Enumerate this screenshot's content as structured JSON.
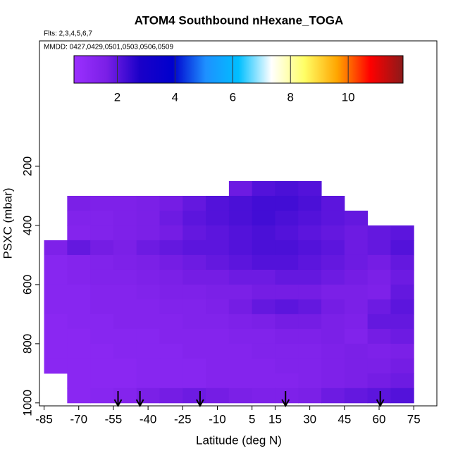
{
  "chart_data": {
    "type": "heatmap",
    "title": "ATOM4 Southbound nHexane_TOGA",
    "subtitle": "Flts: 2,3,4,5,6,7",
    "annotation": "MMDD: 0427,0429,0501,0503,0506,0509",
    "x_label": "Latitude (deg N)",
    "y_label": "PSXC (mbar)",
    "xlim": [
      -87,
      85
    ],
    "ylim": [
      1010,
      -224
    ],
    "xticks": [
      -85,
      -70,
      -55,
      -40,
      -25,
      -10,
      5,
      15,
      30,
      45,
      60,
      75
    ],
    "yticks": [
      200,
      400,
      600,
      800,
      1000
    ],
    "x_edges": [
      -85,
      -75,
      -65,
      -55,
      -45,
      -35,
      -25,
      -15,
      -5,
      5,
      15,
      25,
      35,
      45,
      55,
      65,
      75
    ],
    "y_edges": [
      250,
      300,
      350,
      400,
      450,
      500,
      550,
      600,
      650,
      700,
      750,
      800,
      850,
      900,
      950,
      1000
    ],
    "values": [
      [
        null,
        null,
        null,
        null,
        null,
        null,
        null,
        null,
        1.8,
        2.1,
        2.2,
        2.1,
        null,
        null,
        null,
        null
      ],
      [
        null,
        1.6,
        1.5,
        1.5,
        1.6,
        1.7,
        1.9,
        2.1,
        2.2,
        2.3,
        2.3,
        2.2,
        2.0,
        null,
        null,
        null
      ],
      [
        null,
        1.4,
        1.4,
        1.5,
        1.6,
        1.8,
        2.0,
        2.1,
        2.2,
        2.3,
        2.2,
        2.1,
        2.0,
        1.9,
        null,
        null
      ],
      [
        null,
        1.3,
        1.4,
        1.5,
        1.6,
        1.7,
        1.9,
        2.0,
        2.1,
        2.2,
        2.1,
        2.0,
        1.9,
        1.8,
        1.9,
        2.0
      ],
      [
        1.5,
        1.9,
        1.7,
        1.6,
        1.8,
        1.9,
        2.0,
        2.0,
        2.1,
        2.2,
        2.2,
        2.1,
        2.0,
        1.8,
        1.9,
        2.1
      ],
      [
        1.2,
        1.3,
        1.4,
        1.5,
        1.6,
        1.7,
        1.8,
        1.9,
        2.0,
        2.1,
        2.1,
        2.0,
        1.9,
        1.8,
        1.7,
        1.9
      ],
      [
        1.2,
        1.3,
        1.4,
        1.4,
        1.5,
        1.6,
        1.7,
        1.7,
        1.8,
        1.8,
        1.9,
        1.9,
        1.8,
        1.7,
        1.6,
        1.8
      ],
      [
        1.2,
        1.2,
        1.3,
        1.3,
        1.4,
        1.5,
        1.5,
        1.6,
        1.6,
        1.7,
        1.7,
        1.7,
        1.6,
        1.6,
        1.5,
        1.9
      ],
      [
        1.2,
        1.2,
        1.3,
        1.3,
        1.3,
        1.4,
        1.4,
        1.5,
        1.7,
        1.9,
        2.0,
        1.9,
        1.7,
        1.6,
        1.8,
        2.0
      ],
      [
        1.1,
        1.2,
        1.2,
        1.3,
        1.3,
        1.3,
        1.4,
        1.4,
        1.5,
        1.6,
        1.7,
        1.7,
        1.6,
        1.5,
        1.9,
        1.9
      ],
      [
        1.1,
        1.1,
        1.2,
        1.2,
        1.2,
        1.3,
        1.3,
        1.3,
        1.4,
        1.4,
        1.5,
        1.5,
        1.6,
        1.4,
        1.7,
        1.8
      ],
      [
        1.1,
        1.1,
        1.1,
        1.2,
        1.2,
        1.2,
        1.3,
        1.3,
        1.3,
        1.4,
        1.4,
        1.4,
        1.5,
        1.6,
        1.5,
        1.6
      ],
      [
        1.1,
        1.1,
        1.1,
        1.1,
        1.2,
        1.2,
        1.2,
        1.3,
        1.3,
        1.3,
        1.4,
        1.4,
        1.5,
        1.6,
        1.6,
        1.7
      ],
      [
        null,
        1.1,
        1.1,
        1.1,
        1.2,
        1.2,
        1.2,
        1.3,
        1.3,
        1.3,
        1.3,
        1.4,
        1.5,
        1.6,
        1.7,
        1.8
      ],
      [
        null,
        1.1,
        1.2,
        1.3,
        1.6,
        1.7,
        1.8,
        1.7,
        1.6,
        1.5,
        1.5,
        1.6,
        1.8,
        1.9,
        2.0,
        2.1
      ]
    ],
    "colorbar": {
      "lim": [
        0.5,
        11.9
      ],
      "ticks": [
        2,
        4,
        6,
        8,
        10
      ],
      "colors": [
        "#9b30ff",
        "#7a1fe6",
        "#1a00c8",
        "#0000cd",
        "#1e90ff",
        "#00bfff",
        "#ffffff",
        "#ffff66",
        "#ffa500",
        "#ff0000",
        "#8b1a1a"
      ]
    },
    "arrow_x": [
      -53,
      -43.5,
      -17.5,
      19.5,
      60.5
    ]
  }
}
